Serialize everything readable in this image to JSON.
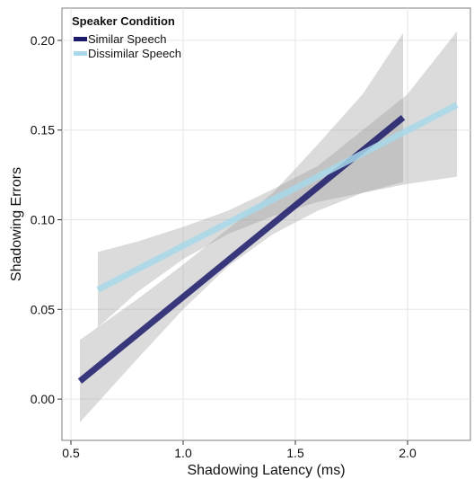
{
  "chart_data": {
    "type": "line",
    "xlabel": "Shadowing Latency (ms)",
    "ylabel": "Shadowing Errors",
    "xlim": [
      0.46,
      2.28
    ],
    "ylim": [
      -0.023,
      0.218
    ],
    "x_ticks": [
      0.5,
      1.0,
      1.5,
      2.0
    ],
    "x_tick_labels": [
      "0.5",
      "1.0",
      "1.5",
      "2.0"
    ],
    "y_ticks": [
      0.0,
      0.05,
      0.1,
      0.15,
      0.2
    ],
    "y_tick_labels": [
      "0.00",
      "0.05",
      "0.10",
      "0.15",
      "0.20"
    ],
    "grid": true,
    "legend": {
      "title": "Speaker Condition",
      "placement": "top-left"
    },
    "series": [
      {
        "name": "Similar Speech",
        "color": "#1b1a6b",
        "x": [
          0.54,
          1.98
        ],
        "y": [
          0.01,
          0.157
        ],
        "band_x": [
          0.54,
          0.8,
          1.0,
          1.2,
          1.4,
          1.6,
          1.8,
          1.98
        ],
        "band_lower": [
          -0.013,
          0.023,
          0.05,
          0.074,
          0.092,
          0.105,
          0.115,
          0.121
        ],
        "band_upper": [
          0.033,
          0.056,
          0.075,
          0.095,
          0.115,
          0.142,
          0.17,
          0.204
        ]
      },
      {
        "name": "Dissimilar Speech",
        "color": "#a8d8ea",
        "x": [
          0.62,
          2.22
        ],
        "y": [
          0.061,
          0.164
        ],
        "band_x": [
          0.62,
          0.8,
          1.0,
          1.2,
          1.4,
          1.6,
          1.8,
          2.0,
          2.22
        ],
        "band_lower": [
          0.04,
          0.06,
          0.078,
          0.092,
          0.102,
          0.11,
          0.115,
          0.12,
          0.124
        ],
        "band_upper": [
          0.082,
          0.088,
          0.096,
          0.105,
          0.117,
          0.13,
          0.15,
          0.17,
          0.205
        ]
      }
    ]
  }
}
